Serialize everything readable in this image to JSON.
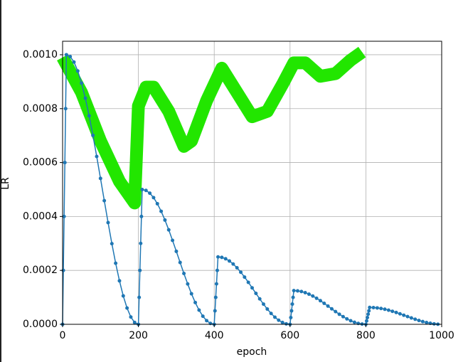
{
  "chart_data": {
    "type": "line",
    "xlabel": "epoch",
    "ylabel": "LR",
    "xlim": [
      0,
      1000
    ],
    "xticks": [
      0,
      200,
      400,
      600,
      800,
      1000
    ],
    "ylim": [
      0,
      0.00105
    ],
    "yticks": [
      {
        "value": 0,
        "label": "0.0000"
      },
      {
        "value": 0.0002,
        "label": "0.0002"
      },
      {
        "value": 0.0004,
        "label": "0.0004"
      },
      {
        "value": 0.0006,
        "label": "0.0006"
      },
      {
        "value": 0.0008,
        "label": "0.0008"
      },
      {
        "value": 0.001,
        "label": "0.0010"
      }
    ],
    "grid": true,
    "series": [
      {
        "color": "#22e600",
        "line_width": 18,
        "markers": false,
        "x": [
          0,
          50,
          100,
          150,
          190,
          200,
          220,
          240,
          280,
          320,
          340,
          380,
          420,
          460,
          500,
          540,
          580,
          610,
          640,
          680,
          720,
          760,
          790
        ],
        "values": [
          0.00099,
          0.00086,
          0.00068,
          0.00053,
          0.00045,
          0.00081,
          0.00088,
          0.00088,
          0.00079,
          0.00066,
          0.00068,
          0.00083,
          0.00095,
          0.00086,
          0.00077,
          0.00079,
          0.00089,
          0.00097,
          0.00097,
          0.00092,
          0.00093,
          0.00098,
          0.00101
        ]
      },
      {
        "color": "#1f77b4",
        "line_width": 1.5,
        "markers": true,
        "x": [
          0,
          2,
          4,
          6,
          8,
          10,
          20,
          30,
          40,
          50,
          60,
          70,
          80,
          90,
          100,
          110,
          120,
          130,
          140,
          150,
          160,
          170,
          180,
          190,
          200,
          202,
          204,
          206,
          208,
          210,
          220,
          230,
          240,
          250,
          260,
          270,
          280,
          290,
          300,
          310,
          320,
          330,
          340,
          350,
          360,
          370,
          380,
          390,
          400,
          402,
          404,
          406,
          408,
          410,
          420,
          430,
          440,
          450,
          460,
          470,
          480,
          490,
          500,
          510,
          520,
          530,
          540,
          550,
          560,
          570,
          580,
          590,
          600,
          602,
          604,
          606,
          608,
          610,
          620,
          630,
          640,
          650,
          660,
          670,
          680,
          690,
          700,
          710,
          720,
          730,
          740,
          750,
          760,
          770,
          780,
          790,
          800,
          802,
          804,
          806,
          808,
          810,
          820,
          830,
          840,
          850,
          860,
          870,
          880,
          890,
          900,
          910,
          920,
          930,
          940,
          950,
          960,
          970,
          980,
          990
        ],
        "values": [
          0,
          0.0002,
          0.0004,
          0.0006,
          0.0008,
          0.001,
          0.0009932,
          0.0009729,
          0.0009397,
          0.0008946,
          0.0008386,
          0.0007735,
          0.0007009,
          0.0006227,
          0.0005413,
          0.0004587,
          0.0003773,
          0.0002992,
          0.0002265,
          0.0001614,
          0.0001054,
          6.03e-05,
          2.71e-05,
          6.8e-06,
          0,
          0.0001,
          0.0002,
          0.0003,
          0.0004,
          0.0005,
          0.0004966,
          0.0004865,
          0.0004699,
          0.0004473,
          0.0004193,
          0.0003867,
          0.0003504,
          0.0003114,
          0.0002706,
          0.0002294,
          0.0001886,
          0.0001496,
          0.0001133,
          8.07e-05,
          5.27e-05,
          3.01e-05,
          1.35e-05,
          3.4e-06,
          0,
          5e-05,
          0.0001,
          0.00015,
          0.0002,
          0.00025,
          0.0002483,
          0.0002432,
          0.0002349,
          0.0002236,
          0.0002097,
          0.0001934,
          0.0001752,
          0.0001557,
          0.0001353,
          0.0001147,
          9.43e-05,
          7.48e-05,
          5.66e-05,
          4.03e-05,
          2.64e-05,
          1.51e-05,
          6.8e-06,
          1.7e-06,
          0,
          2.5e-05,
          5e-05,
          7.5e-05,
          0.0001,
          0.000125,
          0.0001241,
          0.0001216,
          0.0001175,
          0.0001118,
          0.0001048,
          9.67e-05,
          8.76e-05,
          7.78e-05,
          6.77e-05,
          5.73e-05,
          4.72e-05,
          3.74e-05,
          2.83e-05,
          2.02e-05,
          1.32e-05,
          7.5e-06,
          3.4e-06,
          9e-07,
          0,
          1.25e-05,
          2.5e-05,
          3.75e-05,
          5e-05,
          6.25e-05,
          6.21e-05,
          6.08e-05,
          5.87e-05,
          5.59e-05,
          5.24e-05,
          4.83e-05,
          4.38e-05,
          3.89e-05,
          3.38e-05,
          2.87e-05,
          2.36e-05,
          1.87e-05,
          1.42e-05,
          1.01e-05,
          6.6e-06,
          3.8e-06,
          1.7e-06,
          4e-07
        ]
      }
    ]
  }
}
